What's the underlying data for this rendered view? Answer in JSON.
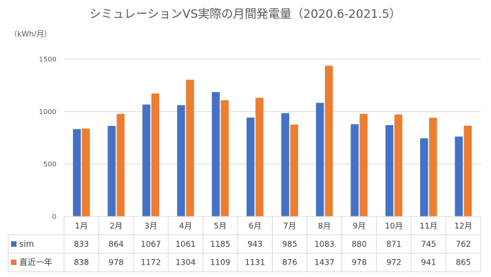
{
  "chart_data": {
    "type": "bar",
    "title": "シミュレーションVS実際の月間発電量（2020.6-2021.5）",
    "ylabel": "（kWh/月）",
    "xlabel": "",
    "ylim": [
      0,
      1500
    ],
    "yticks": [
      0,
      500,
      1000,
      1500
    ],
    "grid": true,
    "categories": [
      "1月",
      "2月",
      "3月",
      "4月",
      "5月",
      "6月",
      "7月",
      "8月",
      "9月",
      "10月",
      "11月",
      "12月"
    ],
    "series": [
      {
        "name": "sim",
        "color": "#4472C4",
        "values": [
          833,
          864,
          1067,
          1061,
          1185,
          943,
          985,
          1083,
          880,
          871,
          745,
          762
        ]
      },
      {
        "name": "直近一年",
        "color": "#ED7D31",
        "values": [
          838,
          978,
          1172,
          1304,
          1109,
          1131,
          876,
          1437,
          978,
          972,
          941,
          865
        ]
      }
    ]
  }
}
